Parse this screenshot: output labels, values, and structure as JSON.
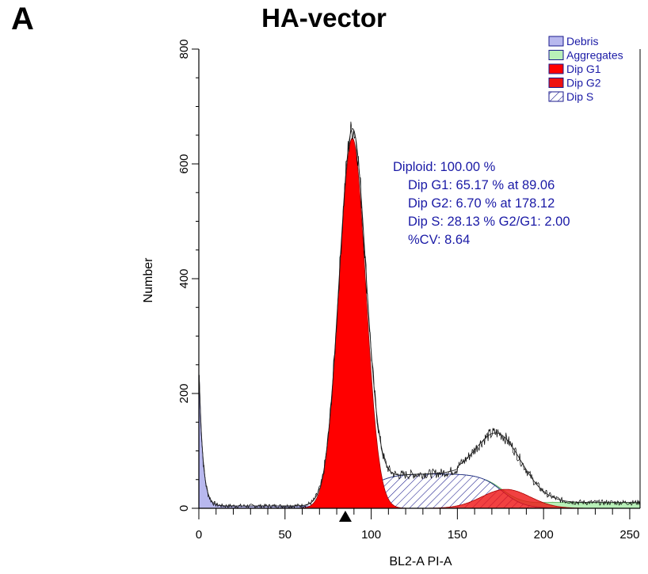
{
  "panel_letter": "A",
  "chart_data": {
    "type": "area",
    "title": "HA-vector",
    "xlabel": "BL2-A PI-A",
    "ylabel": "Number",
    "xlim": [
      0,
      256
    ],
    "ylim": [
      0,
      800
    ],
    "x_ticks": [
      0,
      50,
      100,
      150,
      200,
      250
    ],
    "y_ticks": [
      0,
      200,
      400,
      600,
      800
    ],
    "grid": false,
    "legend_position": "top-right",
    "legend": [
      {
        "name": "Debris",
        "color": "#b8b8ee",
        "pattern": "solid"
      },
      {
        "name": "Aggregates",
        "color": "#b8f0b8",
        "pattern": "solid"
      },
      {
        "name": "Dip G1",
        "color": "#ff0000",
        "pattern": "solid"
      },
      {
        "name": "Dip G2",
        "color": "#ee1111",
        "pattern": "solid"
      },
      {
        "name": "Dip S",
        "color": "#1a1a8c",
        "pattern": "hatch"
      }
    ],
    "stats": [
      "Diploid: 100.00 %",
      "Dip G1: 65.17 % at 89.06",
      "Dip G2: 6.70 % at 178.12",
      "Dip S: 28.13 %   G2/G1: 2.00",
      "%CV: 8.64"
    ],
    "gate_marker_x": 85,
    "series": [
      {
        "name": "Debris",
        "model": "exp",
        "amp": 250,
        "x0": 0,
        "tau": 2.2,
        "floor": 4
      },
      {
        "name": "Dip G1",
        "model": "gauss",
        "peak": 645,
        "center": 89.06,
        "sigma": 7.7
      },
      {
        "name": "Dip S",
        "model": "plateau",
        "height": 60,
        "start": 82,
        "end": 176,
        "edge": 7
      },
      {
        "name": "Dip G2",
        "model": "gauss",
        "peak": 33,
        "center": 178.12,
        "sigma": 14
      },
      {
        "name": "Aggregates",
        "model": "ramp",
        "start": 165,
        "end": 256,
        "height": 10
      },
      {
        "name": "Histogram",
        "model": "sum",
        "extra_peak": 62,
        "extra_center": 175,
        "extra_sigma": 13
      }
    ]
  }
}
